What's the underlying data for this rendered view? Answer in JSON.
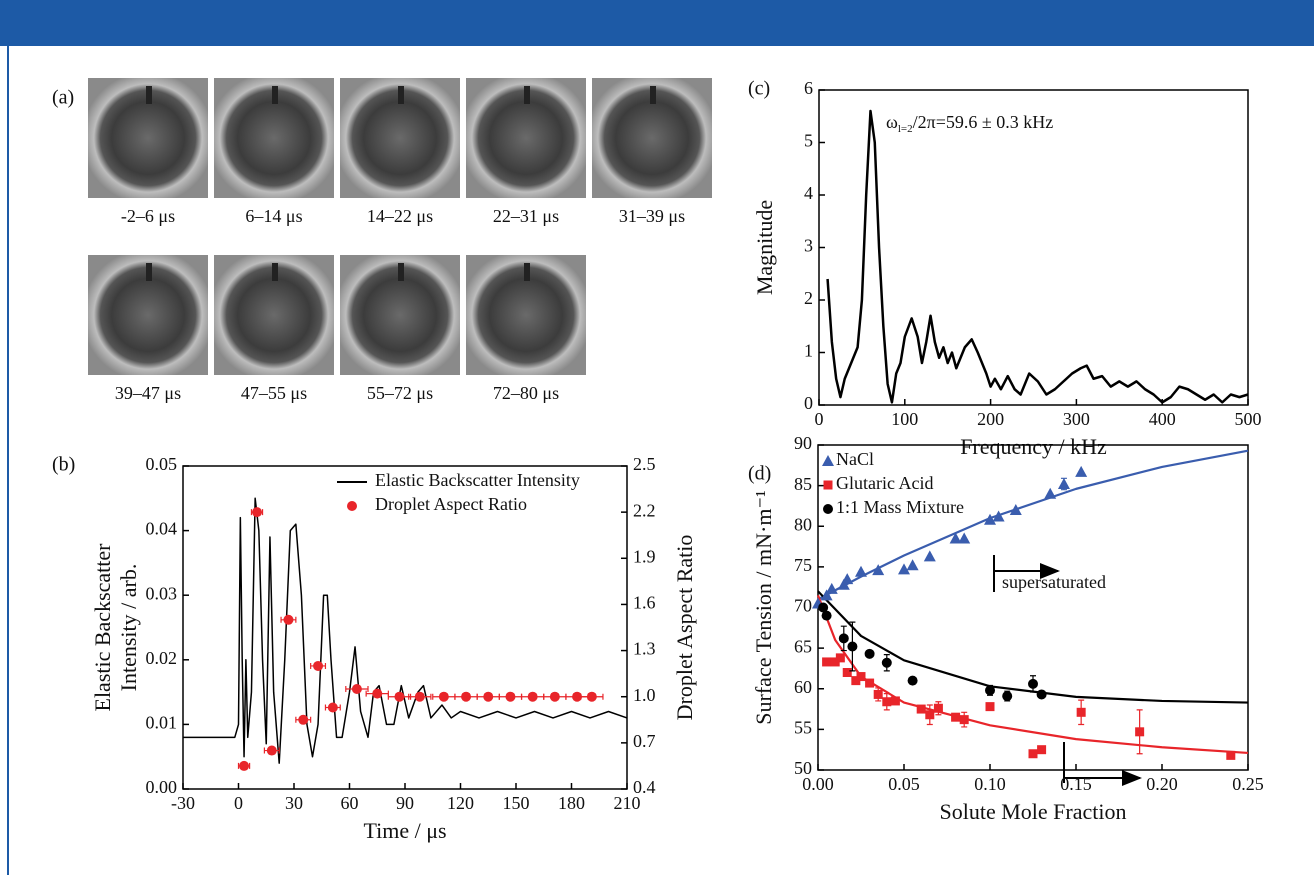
{
  "panel_a": {
    "panel_label": "(a)",
    "labels": [
      "-2–6 μs",
      "6–14 μs",
      "14–22 μs",
      "22–31 μs",
      "31–39 μs",
      "39–47 μs",
      "47–55 μs",
      "55–72 μs",
      "72–80 μs"
    ]
  },
  "chart_data": [
    {
      "type": "line",
      "panel_label": "(b)",
      "xlabel": "Time / μs",
      "ylabel": [
        "Elastic Backscatter",
        "Intensity / arb."
      ],
      "y2label": "Droplet Aspect Ratio",
      "xlim": [
        -30,
        210
      ],
      "xticks": [
        -30,
        0,
        30,
        60,
        90,
        120,
        150,
        180,
        210
      ],
      "ylim": [
        0,
        0.05
      ],
      "yticks": [
        {
          "value": 0,
          "label": "0.00"
        },
        {
          "value": 0.01,
          "label": "0.01"
        },
        {
          "value": 0.02,
          "label": "0.02"
        },
        {
          "value": 0.03,
          "label": "0.03"
        },
        {
          "value": 0.04,
          "label": "0.04"
        },
        {
          "value": 0.05,
          "label": "0.05"
        }
      ],
      "y2lim": [
        0.4,
        2.5
      ],
      "y2ticks": [
        0.4,
        0.7,
        {
          "value": 1,
          "label": "1.0"
        },
        1.3,
        1.6,
        1.9,
        2.2,
        2.5
      ],
      "legend": "upper right",
      "series": [
        {
          "name": "Elastic Backscatter Intensity",
          "type": "line",
          "color": "#000000",
          "x": [
            -30,
            -10,
            -2,
            0,
            1,
            2,
            3,
            4,
            5,
            7,
            9,
            11,
            13,
            15,
            17,
            19,
            22,
            25,
            28,
            31,
            34,
            37,
            40,
            43,
            46,
            48,
            50,
            53,
            56,
            60,
            63,
            66,
            70,
            73,
            76,
            80,
            84,
            88,
            92,
            97,
            100,
            104,
            110,
            115,
            120,
            130,
            140,
            150,
            160,
            170,
            180,
            190,
            200,
            210
          ],
          "values": [
            0.008,
            0.008,
            0.008,
            0.01,
            0.042,
            0.02,
            0.005,
            0.02,
            0.008,
            0.015,
            0.045,
            0.04,
            0.02,
            0.007,
            0.039,
            0.015,
            0.004,
            0.02,
            0.04,
            0.041,
            0.03,
            0.01,
            0.005,
            0.01,
            0.03,
            0.03,
            0.02,
            0.008,
            0.008,
            0.015,
            0.022,
            0.012,
            0.008,
            0.015,
            0.016,
            0.01,
            0.01,
            0.016,
            0.011,
            0.015,
            0.016,
            0.011,
            0.013,
            0.011,
            0.012,
            0.011,
            0.012,
            0.011,
            0.012,
            0.011,
            0.012,
            0.011,
            0.012,
            0.011
          ]
        },
        {
          "name": "Droplet Aspect Ratio",
          "type": "scatter",
          "marker": "circle",
          "axis": "y2",
          "color": "#e8252a",
          "x": [
            3,
            10,
            18,
            27,
            35,
            43,
            51,
            64,
            75,
            87,
            98,
            111,
            123,
            135,
            147,
            159,
            171,
            183,
            191
          ],
          "values": [
            0.55,
            2.2,
            0.65,
            1.5,
            0.85,
            1.2,
            0.93,
            1.05,
            1.02,
            1.0,
            1.0,
            1.0,
            1.0,
            1.0,
            1.0,
            1.0,
            1.0,
            1.0,
            1.0
          ],
          "xerr": [
            3,
            3,
            4,
            4,
            4,
            4,
            4,
            6,
            6,
            6,
            6,
            6,
            6,
            6,
            6,
            6,
            6,
            6,
            6
          ]
        }
      ]
    },
    {
      "type": "line",
      "panel_label": "(c)",
      "xlabel": "Frequency / kHz",
      "ylabel": "Magnitude",
      "annotation": {
        "symbol": "ω",
        "subscript": "l=2",
        "text": "/2π=59.6 ± 0.3 kHz"
      },
      "xlim": [
        0,
        500
      ],
      "xticks": [
        0,
        100,
        200,
        300,
        400,
        500
      ],
      "ylim": [
        0,
        6
      ],
      "yticks": [
        0,
        1,
        2,
        3,
        4,
        5,
        6
      ],
      "series": [
        {
          "type": "line",
          "color": "#000000",
          "x": [
            10,
            15,
            20,
            25,
            30,
            40,
            45,
            50,
            55,
            60,
            65,
            70,
            75,
            80,
            85,
            90,
            95,
            100,
            108,
            115,
            120,
            125,
            130,
            135,
            140,
            145,
            150,
            155,
            160,
            170,
            178,
            185,
            195,
            200,
            205,
            212,
            220,
            228,
            235,
            245,
            255,
            265,
            275,
            285,
            295,
            305,
            312,
            320,
            330,
            340,
            350,
            360,
            370,
            380,
            390,
            400,
            410,
            420,
            430,
            440,
            450,
            460,
            470,
            480,
            490,
            500
          ],
          "values": [
            2.4,
            1.2,
            0.5,
            0.15,
            0.5,
            0.9,
            1.1,
            2,
            4,
            5.6,
            5,
            3,
            1.5,
            0.4,
            0.05,
            0.6,
            0.8,
            1.3,
            1.65,
            1.3,
            0.8,
            1.2,
            1.7,
            1.2,
            0.9,
            1.1,
            0.8,
            1.0,
            0.7,
            1.1,
            1.25,
            1.0,
            0.6,
            0.35,
            0.5,
            0.3,
            0.55,
            0.3,
            0.2,
            0.6,
            0.45,
            0.2,
            0.3,
            0.45,
            0.6,
            0.7,
            0.75,
            0.5,
            0.55,
            0.35,
            0.45,
            0.35,
            0.45,
            0.3,
            0.2,
            0.05,
            0.15,
            0.35,
            0.3,
            0.2,
            0.1,
            0.2,
            0.05,
            0.2,
            0.15,
            0.2
          ]
        }
      ]
    },
    {
      "type": "scatter",
      "panel_label": "(d)",
      "xlabel": "Solute Mole Fraction",
      "ylabel": "Surface Tension / mN·m⁻¹",
      "annotation": "supersaturated",
      "xlim": [
        0,
        0.25
      ],
      "xticks": [
        {
          "value": 0,
          "label": "0.00"
        },
        {
          "value": 0.05,
          "label": "0.05"
        },
        {
          "value": 0.1,
          "label": "0.10"
        },
        {
          "value": 0.15,
          "label": "0.15"
        },
        {
          "value": 0.2,
          "label": "0.20"
        },
        {
          "value": 0.25,
          "label": "0.25"
        }
      ],
      "ylim": [
        50,
        90
      ],
      "yticks": [
        50,
        55,
        60,
        65,
        70,
        75,
        80,
        85,
        90
      ],
      "legend": "upper left",
      "series": [
        {
          "name": "NaCl",
          "marker": "triangle",
          "color": "#3a5dae",
          "x": [
            0.0,
            0.005,
            0.008,
            0.015,
            0.017,
            0.025,
            0.035,
            0.05,
            0.055,
            0.065,
            0.08,
            0.085,
            0.1,
            0.105,
            0.115,
            0.135,
            0.143,
            0.153
          ],
          "values": [
            70.5,
            71.5,
            72.3,
            72.8,
            73.5,
            74.4,
            74.6,
            74.7,
            75.2,
            76.3,
            78.5,
            78.5,
            80.8,
            81.2,
            82,
            84,
            85.2,
            86.7
          ],
          "yerr": [
            null,
            null,
            null,
            null,
            null,
            null,
            null,
            null,
            null,
            null,
            null,
            null,
            null,
            null,
            null,
            null,
            0.7,
            null
          ]
        },
        {
          "name": "Glutaric Acid",
          "marker": "square",
          "color": "#e8252a",
          "x": [
            0.005,
            0.01,
            0.013,
            0.017,
            0.022,
            0.025,
            0.03,
            0.035,
            0.04,
            0.045,
            0.06,
            0.065,
            0.07,
            0.08,
            0.085,
            0.1,
            0.125,
            0.13,
            0.153,
            0.187,
            0.24
          ],
          "values": [
            63.3,
            63.3,
            63.8,
            62,
            61,
            61.5,
            60.7,
            59.3,
            58.4,
            58.5,
            57.5,
            56.8,
            57.6,
            56.5,
            56.2,
            57.8,
            52,
            52.5,
            57.1,
            54.7,
            51.8
          ],
          "yerr": [
            null,
            null,
            null,
            null,
            null,
            null,
            null,
            0.8,
            1,
            null,
            null,
            1.2,
            0.8,
            null,
            0.9,
            null,
            null,
            null,
            1.5,
            2.7,
            null
          ]
        },
        {
          "name": "1:1 Mass Mixture",
          "marker": "circle",
          "color": "#000000",
          "x": [
            0.003,
            0.005,
            0.015,
            0.02,
            0.03,
            0.04,
            0.055,
            0.1,
            0.11,
            0.125,
            0.13
          ],
          "values": [
            70,
            69,
            66.2,
            65.2,
            64.3,
            63.2,
            61,
            59.8,
            59.1,
            60.6,
            59.3
          ],
          "yerr": [
            null,
            null,
            1.5,
            3,
            null,
            1,
            null,
            0.6,
            0.6,
            1,
            null
          ]
        }
      ],
      "fits": [
        {
          "color": "#3a5dae",
          "x": [
            0,
            0.025,
            0.05,
            0.1,
            0.15,
            0.2,
            0.25
          ],
          "values": [
            71,
            73.8,
            76.4,
            81,
            84.6,
            87.3,
            89.3
          ]
        },
        {
          "color": "#000000",
          "x": [
            0,
            0.025,
            0.05,
            0.1,
            0.15,
            0.2,
            0.25
          ],
          "values": [
            72,
            66.5,
            63.5,
            60.3,
            59,
            58.5,
            58.3
          ]
        },
        {
          "color": "#e8252a",
          "x": [
            0,
            0.01,
            0.025,
            0.05,
            0.1,
            0.15,
            0.2,
            0.25
          ],
          "values": [
            71.5,
            66,
            61.5,
            58.3,
            55.5,
            53.8,
            52.8,
            52.1
          ]
        }
      ]
    }
  ]
}
